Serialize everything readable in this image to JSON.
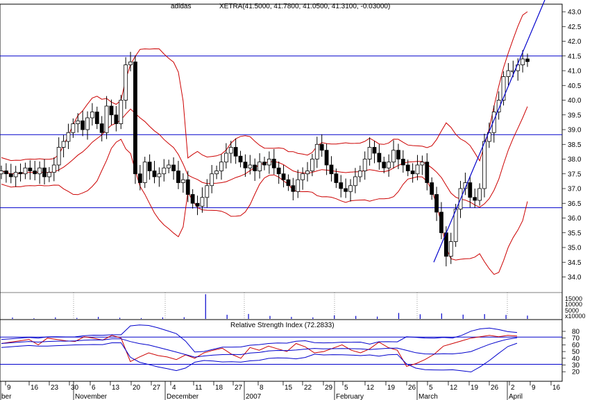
{
  "header": {
    "symbol": "adidas",
    "quote": "XETRA(41.5000, 41.7800, 41.0500, 41.3100, -0.03000)"
  },
  "colors": {
    "background": "#ffffff",
    "frame": "#000000",
    "bollinger": "#cc0000",
    "support_resistance": "#0000cc",
    "candle": "#000000",
    "volume": "#0000cc",
    "rsi": "#cc0000"
  },
  "chart_data": [
    {
      "type": "candlestick",
      "ylim": [
        33.6,
        43.3
      ],
      "y_ticks": [
        "43.0",
        "42.5",
        "42.0",
        "41.5",
        "41.0",
        "40.5",
        "40.0",
        "39.5",
        "39.0",
        "38.5",
        "38.0",
        "37.5",
        "37.0",
        "36.5",
        "36.0",
        "35.5",
        "35.0",
        "34.5",
        "34.0"
      ],
      "x_day_labels": [
        "9",
        "16",
        "23",
        "30",
        "6",
        "13",
        "20",
        "27",
        "4",
        "11",
        "18",
        "27",
        "8",
        "15",
        "22",
        "29",
        "5",
        "12",
        "19",
        "26",
        "5",
        "12",
        "19",
        "26",
        "2",
        "9",
        "16"
      ],
      "x_month_labels": [
        "ber",
        "November",
        "December",
        "2007",
        "February",
        "March",
        "April"
      ],
      "horizontal_lines": [
        41.5,
        38.83,
        36.35
      ],
      "trendline": {
        "from": [
          0.2,
          34.5
        ],
        "to": [
          0.995,
          43.3
        ]
      },
      "candles_close_path": [
        37.6,
        37.5,
        37.4,
        37.55,
        37.5,
        37.7,
        37.6,
        37.5,
        37.7,
        37.4,
        37.55,
        37.8,
        38.4,
        38.6,
        38.9,
        39.2,
        39.3,
        39.0,
        39.4,
        39.6,
        39.2,
        38.9,
        39.8,
        39.5,
        39.2,
        40.0,
        41.2,
        41.3,
        37.5,
        37.2,
        37.9,
        37.6,
        37.4,
        37.5,
        37.7,
        37.8,
        37.6,
        37.2,
        37.3,
        36.8,
        36.5,
        36.4,
        36.7,
        37.1,
        37.5,
        37.6,
        37.9,
        38.2,
        38.4,
        38.1,
        37.9,
        37.7,
        37.8,
        37.6,
        37.9,
        37.8,
        38.0,
        37.7,
        37.5,
        37.3,
        37.1,
        36.9,
        37.3,
        37.5,
        37.6,
        38.0,
        38.5,
        38.3,
        37.8,
        37.5,
        37.2,
        37.0,
        36.9,
        37.1,
        37.4,
        37.6,
        38.0,
        38.4,
        38.2,
        37.9,
        37.7,
        37.9,
        38.3,
        38.0,
        37.8,
        37.6,
        37.5,
        37.8,
        37.9,
        37.2,
        36.8,
        36.2,
        35.5,
        34.7,
        35.2,
        36.3,
        37.0,
        37.2,
        36.7,
        36.6,
        37.0,
        38.6,
        38.9,
        39.6,
        40.0,
        40.8,
        41.0,
        41.0,
        41.2,
        41.4,
        41.31
      ],
      "volume_labels": [
        "15000",
        "10000",
        "5000",
        "x10000"
      ],
      "volume_values": [
        800,
        400,
        900,
        600,
        1200,
        700,
        500,
        900,
        1000,
        15000,
        2500,
        3000,
        1800,
        1200,
        900,
        2200,
        1800,
        1400,
        3600,
        2800,
        3300,
        2600,
        2900,
        2400,
        2000
      ]
    },
    {
      "type": "line",
      "title": "Relative Strength Index (72.2833)",
      "ylim": [
        18,
        90
      ],
      "y_ticks": [
        "80",
        "70",
        "60",
        "50",
        "40",
        "30",
        "20"
      ],
      "horizontal_lines": [
        71.5,
        31
      ],
      "rsi_values": [
        62,
        64,
        66,
        68,
        60,
        70,
        68,
        66,
        65,
        72,
        70,
        67,
        74,
        70,
        35,
        42,
        48,
        44,
        42,
        38,
        45,
        40,
        48,
        52,
        55,
        46,
        40,
        56,
        52,
        58,
        54,
        50,
        62,
        57,
        48,
        50,
        55,
        60,
        52,
        48,
        54,
        64,
        56,
        52,
        28,
        32,
        38,
        46,
        58,
        62,
        66,
        70,
        72,
        74,
        72,
        74,
        73
      ]
    }
  ]
}
